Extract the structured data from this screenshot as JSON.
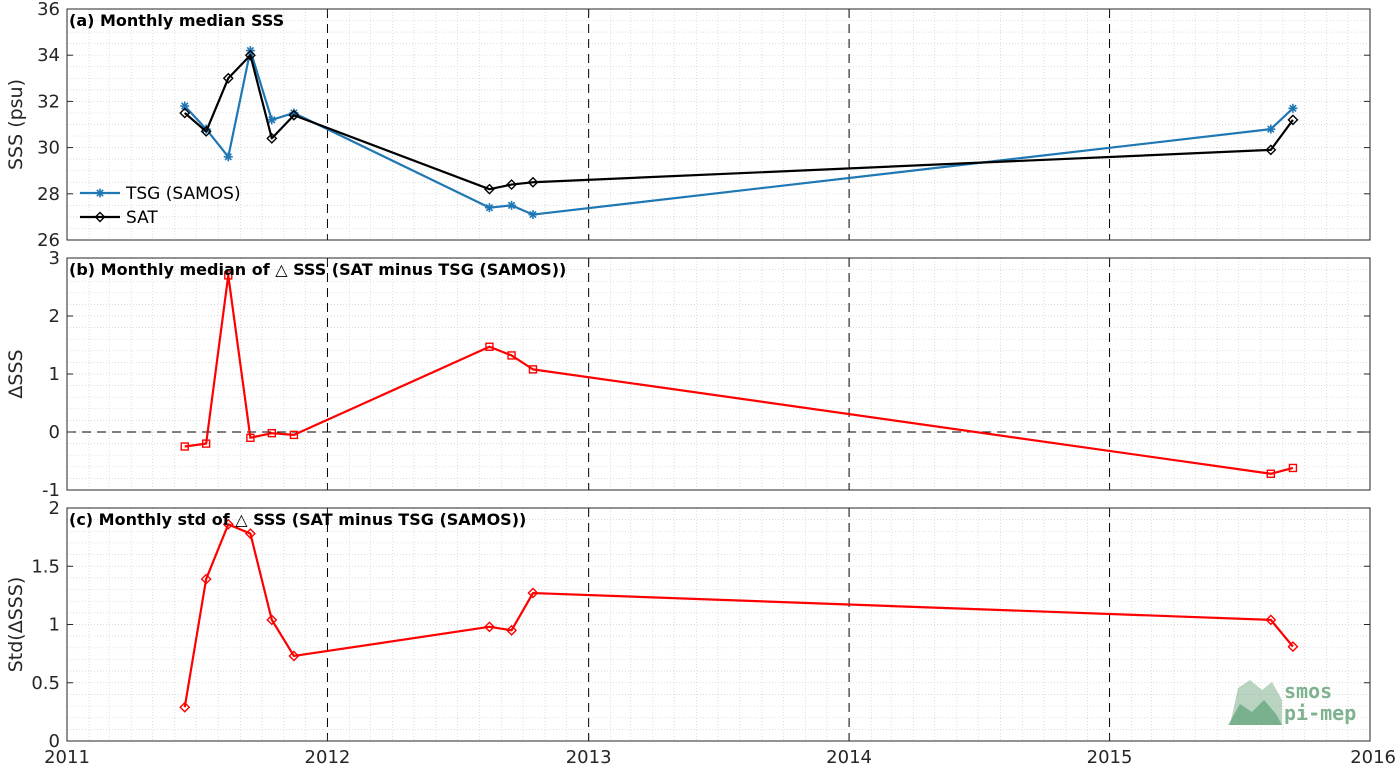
{
  "chart_data": [
    {
      "type": "line",
      "title": "(a) Monthly median SSS",
      "ylabel": "SSS (psu)",
      "xlim": [
        "2011-01-01",
        "2016-01-01"
      ],
      "x_ticks": [
        "2011",
        "2012",
        "2013",
        "2014",
        "2015",
        "2016"
      ],
      "ylim": [
        26,
        36
      ],
      "y_ticks": [
        "26",
        "28",
        "30",
        "32",
        "34",
        "36"
      ],
      "grid": "dotted",
      "legend": "lower-left",
      "series": [
        {
          "name": "TSG (SAMOS)",
          "color": "#1f77b4",
          "marker": "asterisk",
          "points": [
            {
              "date": "2011-06-15",
              "value": 31.8
            },
            {
              "date": "2011-07-15",
              "value": 30.8
            },
            {
              "date": "2011-08-15",
              "value": 29.6
            },
            {
              "date": "2011-09-15",
              "value": 34.2
            },
            {
              "date": "2011-10-15",
              "value": 31.2
            },
            {
              "date": "2011-11-15",
              "value": 31.5
            },
            {
              "date": "2012-08-15",
              "value": 27.4
            },
            {
              "date": "2012-09-15",
              "value": 27.5
            },
            {
              "date": "2012-10-15",
              "value": 27.1
            },
            {
              "date": "2015-08-15",
              "value": 30.8
            },
            {
              "date": "2015-09-15",
              "value": 31.7
            }
          ]
        },
        {
          "name": "SAT",
          "color": "#000000",
          "marker": "diamond",
          "points": [
            {
              "date": "2011-06-15",
              "value": 31.5
            },
            {
              "date": "2011-07-15",
              "value": 30.7
            },
            {
              "date": "2011-08-15",
              "value": 33.0
            },
            {
              "date": "2011-09-15",
              "value": 34.0
            },
            {
              "date": "2011-10-15",
              "value": 30.4
            },
            {
              "date": "2011-11-15",
              "value": 31.4
            },
            {
              "date": "2012-08-15",
              "value": 28.2
            },
            {
              "date": "2012-09-15",
              "value": 28.4
            },
            {
              "date": "2012-10-15",
              "value": 28.5
            },
            {
              "date": "2015-08-15",
              "value": 29.9
            },
            {
              "date": "2015-09-15",
              "value": 31.2
            }
          ]
        }
      ]
    },
    {
      "type": "line",
      "title": "(b) Monthly median of △ SSS (SAT minus TSG (SAMOS))",
      "ylabel": "ΔSSS",
      "xlim": [
        "2011-01-01",
        "2016-01-01"
      ],
      "ylim": [
        -1,
        3
      ],
      "y_ticks": [
        "-1",
        "0",
        "1",
        "2",
        "3"
      ],
      "zero_line": true,
      "series": [
        {
          "color": "#ff0000",
          "marker": "square",
          "points": [
            {
              "date": "2011-06-15",
              "value": -0.25
            },
            {
              "date": "2011-07-15",
              "value": -0.2
            },
            {
              "date": "2011-08-15",
              "value": 2.7
            },
            {
              "date": "2011-09-15",
              "value": -0.1
            },
            {
              "date": "2011-10-15",
              "value": -0.02
            },
            {
              "date": "2011-11-15",
              "value": -0.05
            },
            {
              "date": "2012-08-15",
              "value": 1.47
            },
            {
              "date": "2012-09-15",
              "value": 1.32
            },
            {
              "date": "2012-10-15",
              "value": 1.08
            },
            {
              "date": "2015-08-15",
              "value": -0.72
            },
            {
              "date": "2015-09-15",
              "value": -0.62
            }
          ]
        }
      ]
    },
    {
      "type": "line",
      "title": "(c) Monthly std of △ SSS (SAT minus TSG (SAMOS))",
      "ylabel": "Std(ΔSSS)",
      "xlim": [
        "2011-01-01",
        "2016-01-01"
      ],
      "x_ticks": [
        "2011",
        "2012",
        "2013",
        "2014",
        "2015",
        "2016"
      ],
      "ylim": [
        0,
        2
      ],
      "y_ticks": [
        "0",
        "0.5",
        "1",
        "1.5",
        "2"
      ],
      "series": [
        {
          "color": "#ff0000",
          "marker": "diamond",
          "points": [
            {
              "date": "2011-06-15",
              "value": 0.29
            },
            {
              "date": "2011-07-15",
              "value": 1.39
            },
            {
              "date": "2011-08-15",
              "value": 1.86
            },
            {
              "date": "2011-09-15",
              "value": 1.78
            },
            {
              "date": "2011-10-15",
              "value": 1.04
            },
            {
              "date": "2011-11-15",
              "value": 0.73
            },
            {
              "date": "2012-08-15",
              "value": 0.98
            },
            {
              "date": "2012-09-15",
              "value": 0.95
            },
            {
              "date": "2012-10-15",
              "value": 1.27
            },
            {
              "date": "2015-08-15",
              "value": 1.04
            },
            {
              "date": "2015-09-15",
              "value": 0.81
            }
          ]
        }
      ]
    }
  ],
  "logo": {
    "line1": "smos",
    "line2": "pi-mep",
    "color": "#7fb28f"
  }
}
